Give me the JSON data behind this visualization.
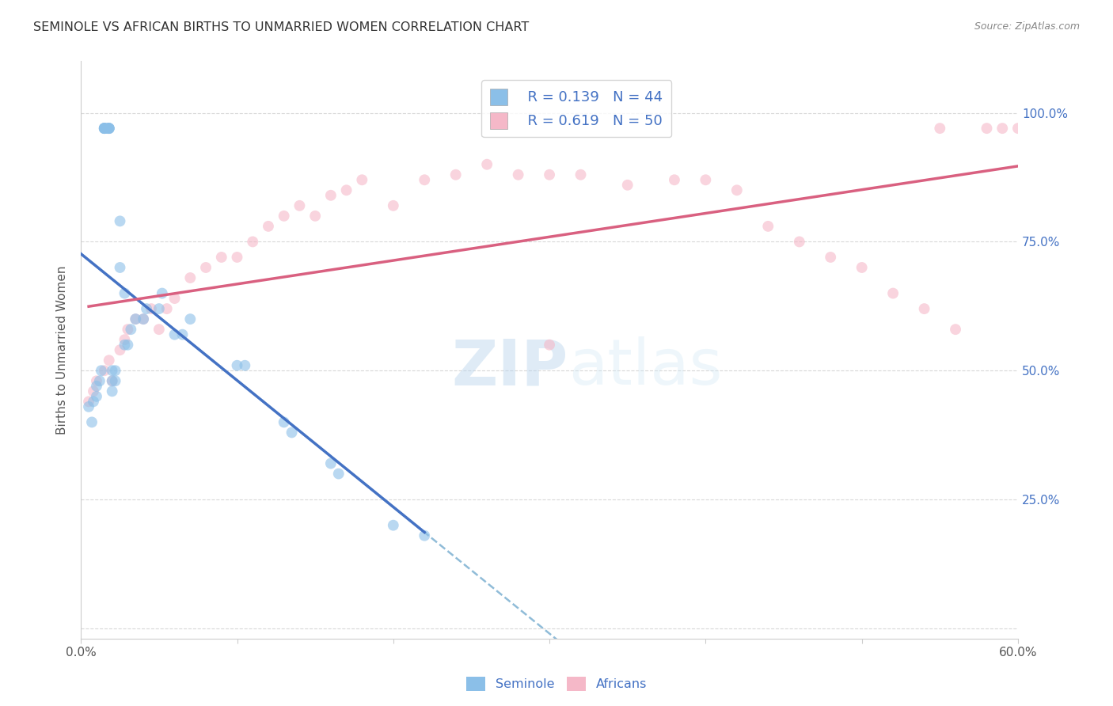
{
  "title": "SEMINOLE VS AFRICAN BIRTHS TO UNMARRIED WOMEN CORRELATION CHART",
  "source": "Source: ZipAtlas.com",
  "ylabel": "Births to Unmarried Women",
  "ytick_labels": [
    "",
    "25.0%",
    "50.0%",
    "75.0%",
    "100.0%"
  ],
  "ytick_values": [
    0.0,
    0.25,
    0.5,
    0.75,
    1.0
  ],
  "xlim": [
    0.0,
    0.6
  ],
  "ylim": [
    -0.02,
    1.1
  ],
  "seminole_R": 0.139,
  "seminole_N": 44,
  "african_R": 0.619,
  "african_N": 50,
  "seminole_color": "#8bbfe8",
  "african_color": "#f5b8c8",
  "seminole_line_color": "#4472c4",
  "african_line_color": "#d96080",
  "dashed_line_color": "#90bcd8",
  "background_color": "#ffffff",
  "grid_color": "#d8d8d8",
  "seminole_x": [
    0.005,
    0.007,
    0.008,
    0.01,
    0.01,
    0.012,
    0.013,
    0.015,
    0.015,
    0.015,
    0.015,
    0.015,
    0.017,
    0.018,
    0.018,
    0.018,
    0.018,
    0.02,
    0.02,
    0.02,
    0.022,
    0.022,
    0.025,
    0.025,
    0.028,
    0.028,
    0.03,
    0.032,
    0.035,
    0.04,
    0.042,
    0.05,
    0.052,
    0.06,
    0.065,
    0.07,
    0.1,
    0.105,
    0.13,
    0.135,
    0.16,
    0.165,
    0.2,
    0.22
  ],
  "seminole_y": [
    0.43,
    0.4,
    0.44,
    0.47,
    0.45,
    0.48,
    0.5,
    0.97,
    0.97,
    0.97,
    0.97,
    0.97,
    0.97,
    0.97,
    0.97,
    0.97,
    0.97,
    0.5,
    0.48,
    0.46,
    0.5,
    0.48,
    0.79,
    0.7,
    0.65,
    0.55,
    0.55,
    0.58,
    0.6,
    0.6,
    0.62,
    0.62,
    0.65,
    0.57,
    0.57,
    0.6,
    0.51,
    0.51,
    0.4,
    0.38,
    0.32,
    0.3,
    0.2,
    0.18
  ],
  "african_x": [
    0.005,
    0.008,
    0.01,
    0.015,
    0.018,
    0.02,
    0.025,
    0.028,
    0.03,
    0.035,
    0.04,
    0.045,
    0.05,
    0.055,
    0.06,
    0.07,
    0.08,
    0.09,
    0.1,
    0.11,
    0.12,
    0.13,
    0.14,
    0.15,
    0.16,
    0.17,
    0.18,
    0.2,
    0.22,
    0.24,
    0.26,
    0.28,
    0.3,
    0.32,
    0.35,
    0.38,
    0.4,
    0.42,
    0.44,
    0.46,
    0.48,
    0.5,
    0.52,
    0.54,
    0.56,
    0.58,
    0.59,
    0.6,
    0.55,
    0.3
  ],
  "african_y": [
    0.44,
    0.46,
    0.48,
    0.5,
    0.52,
    0.48,
    0.54,
    0.56,
    0.58,
    0.6,
    0.6,
    0.62,
    0.58,
    0.62,
    0.64,
    0.68,
    0.7,
    0.72,
    0.72,
    0.75,
    0.78,
    0.8,
    0.82,
    0.8,
    0.84,
    0.85,
    0.87,
    0.82,
    0.87,
    0.88,
    0.9,
    0.88,
    0.88,
    0.88,
    0.86,
    0.87,
    0.87,
    0.85,
    0.78,
    0.75,
    0.72,
    0.7,
    0.65,
    0.62,
    0.58,
    0.97,
    0.97,
    0.97,
    0.97,
    0.55
  ],
  "watermark_zip": "ZIP",
  "watermark_atlas": "atlas",
  "marker_size": 100,
  "marker_alpha": 0.6
}
